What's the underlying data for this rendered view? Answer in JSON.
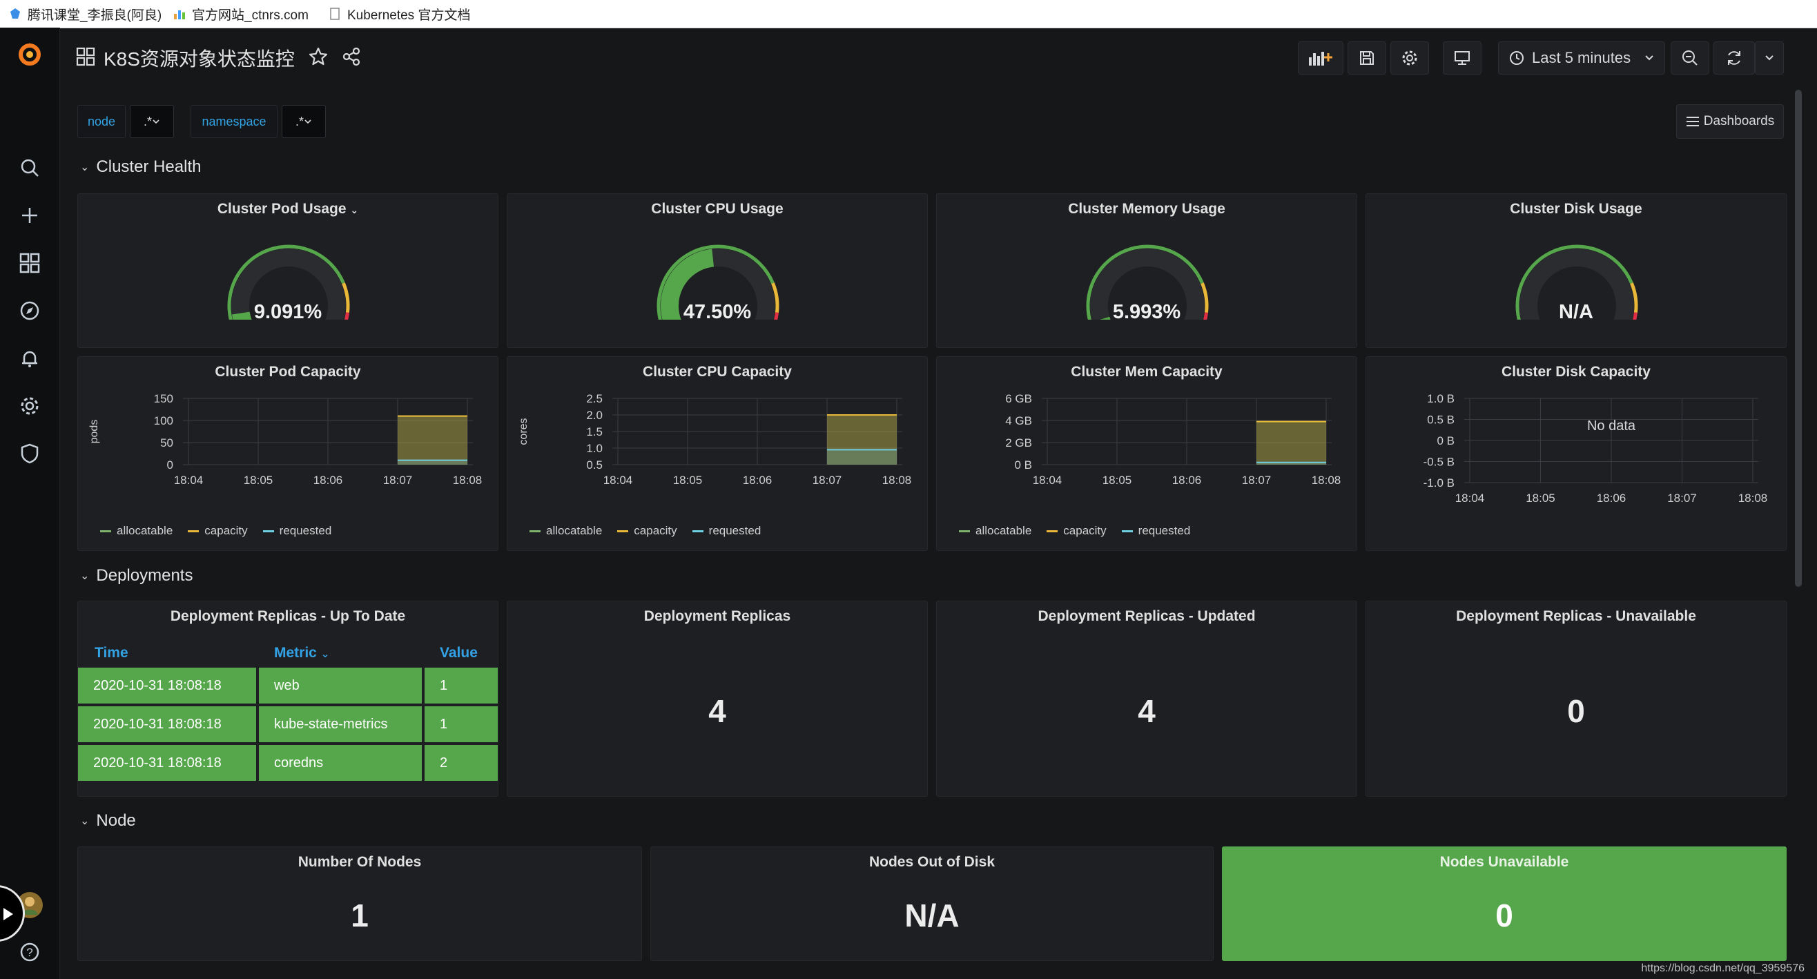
{
  "bookmarks": [
    {
      "label": "腾讯课堂_李振良(阿良)"
    },
    {
      "label": "官方网站_ctnrs.com"
    },
    {
      "label": "Kubernetes 官方文档"
    }
  ],
  "header": {
    "title": "K8S资源对象状态监控",
    "time_range": "Last 5 minutes"
  },
  "variables": [
    {
      "label": "node",
      "value": ".*"
    },
    {
      "label": "namespace",
      "value": ".*"
    }
  ],
  "dashboards_button": "Dashboards",
  "rows": {
    "cluster_health": "Cluster Health",
    "deployments": "Deployments",
    "node": "Node"
  },
  "gauges": [
    {
      "title": "Cluster Pod Usage",
      "value": "9.091%",
      "fraction": 0.091
    },
    {
      "title": "Cluster CPU Usage",
      "value": "47.50%",
      "fraction": 0.475
    },
    {
      "title": "Cluster Memory Usage",
      "value": "5.993%",
      "fraction": 0.0599
    },
    {
      "title": "Cluster Disk Usage",
      "value": "N/A",
      "fraction": 0
    }
  ],
  "legend": {
    "allocatable": "allocatable",
    "capacity": "capacity",
    "requested": "requested"
  },
  "colors": {
    "allocatable": "#7eb26d",
    "capacity": "#eab839",
    "requested": "#6ed0e0",
    "green": "#56a64b",
    "blue": "#33a2e5",
    "red": "#e02f44"
  },
  "chart_data": [
    {
      "type": "area",
      "title": "Cluster Pod Capacity",
      "ylabel": "pods",
      "yticks": [
        "150",
        "100",
        "50",
        "0"
      ],
      "ylim": [
        0,
        150
      ],
      "x": [
        "18:04",
        "18:05",
        "18:06",
        "18:07",
        "18:08"
      ],
      "series": [
        {
          "name": "allocatable",
          "values": [
            null,
            null,
            null,
            110,
            110
          ]
        },
        {
          "name": "capacity",
          "values": [
            null,
            null,
            null,
            110,
            110
          ]
        },
        {
          "name": "requested",
          "values": [
            null,
            null,
            null,
            10,
            10
          ]
        }
      ]
    },
    {
      "type": "area",
      "title": "Cluster CPU Capacity",
      "ylabel": "cores",
      "yticks": [
        "2.5",
        "2.0",
        "1.5",
        "1.0",
        "0.5"
      ],
      "ylim": [
        0.5,
        2.5
      ],
      "x": [
        "18:04",
        "18:05",
        "18:06",
        "18:07",
        "18:08"
      ],
      "series": [
        {
          "name": "allocatable",
          "values": [
            null,
            null,
            null,
            2,
            2
          ]
        },
        {
          "name": "capacity",
          "values": [
            null,
            null,
            null,
            2,
            2
          ]
        },
        {
          "name": "requested",
          "values": [
            null,
            null,
            null,
            0.95,
            0.95
          ]
        }
      ]
    },
    {
      "type": "area",
      "title": "Cluster Mem Capacity",
      "ylabel": "",
      "yticks": [
        "6 GB",
        "4 GB",
        "2 GB",
        "0 B"
      ],
      "ylim": [
        0,
        6
      ],
      "x": [
        "18:04",
        "18:05",
        "18:06",
        "18:07",
        "18:08"
      ],
      "series": [
        {
          "name": "allocatable",
          "values": [
            null,
            null,
            null,
            3.9,
            3.9
          ]
        },
        {
          "name": "capacity",
          "values": [
            null,
            null,
            null,
            3.9,
            3.9
          ]
        },
        {
          "name": "requested",
          "values": [
            null,
            null,
            null,
            0.2,
            0.2
          ]
        }
      ]
    },
    {
      "type": "line",
      "title": "Cluster Disk Capacity",
      "ylabel": "",
      "yticks": [
        "1.0 B",
        "0.5 B",
        "0 B",
        "-0.5 B",
        "-1.0 B"
      ],
      "ylim": [
        -1,
        1
      ],
      "x": [
        "18:04",
        "18:05",
        "18:06",
        "18:07",
        "18:08"
      ],
      "series": [],
      "annotation": "No data"
    }
  ],
  "deployments_table": {
    "title": "Deployment Replicas - Up To Date",
    "columns": [
      "Time",
      "Metric",
      "Value"
    ],
    "rows": [
      {
        "time": "2020-10-31 18:08:18",
        "metric": "web",
        "value": "1"
      },
      {
        "time": "2020-10-31 18:08:18",
        "metric": "kube-state-metrics",
        "value": "1"
      },
      {
        "time": "2020-10-31 18:08:18",
        "metric": "coredns",
        "value": "2"
      }
    ]
  },
  "stats": {
    "replicas": {
      "title": "Deployment Replicas",
      "value": "4"
    },
    "updated": {
      "title": "Deployment Replicas - Updated",
      "value": "4"
    },
    "unavailable": {
      "title": "Deployment Replicas - Unavailable",
      "value": "0"
    },
    "nodes": {
      "title": "Number Of Nodes",
      "value": "1"
    },
    "out_of_disk": {
      "title": "Nodes Out of Disk",
      "value": "N/A"
    },
    "nodes_unavailable": {
      "title": "Nodes Unavailable",
      "value": "0"
    }
  },
  "watermark": "https://blog.csdn.net/qq_3959576"
}
